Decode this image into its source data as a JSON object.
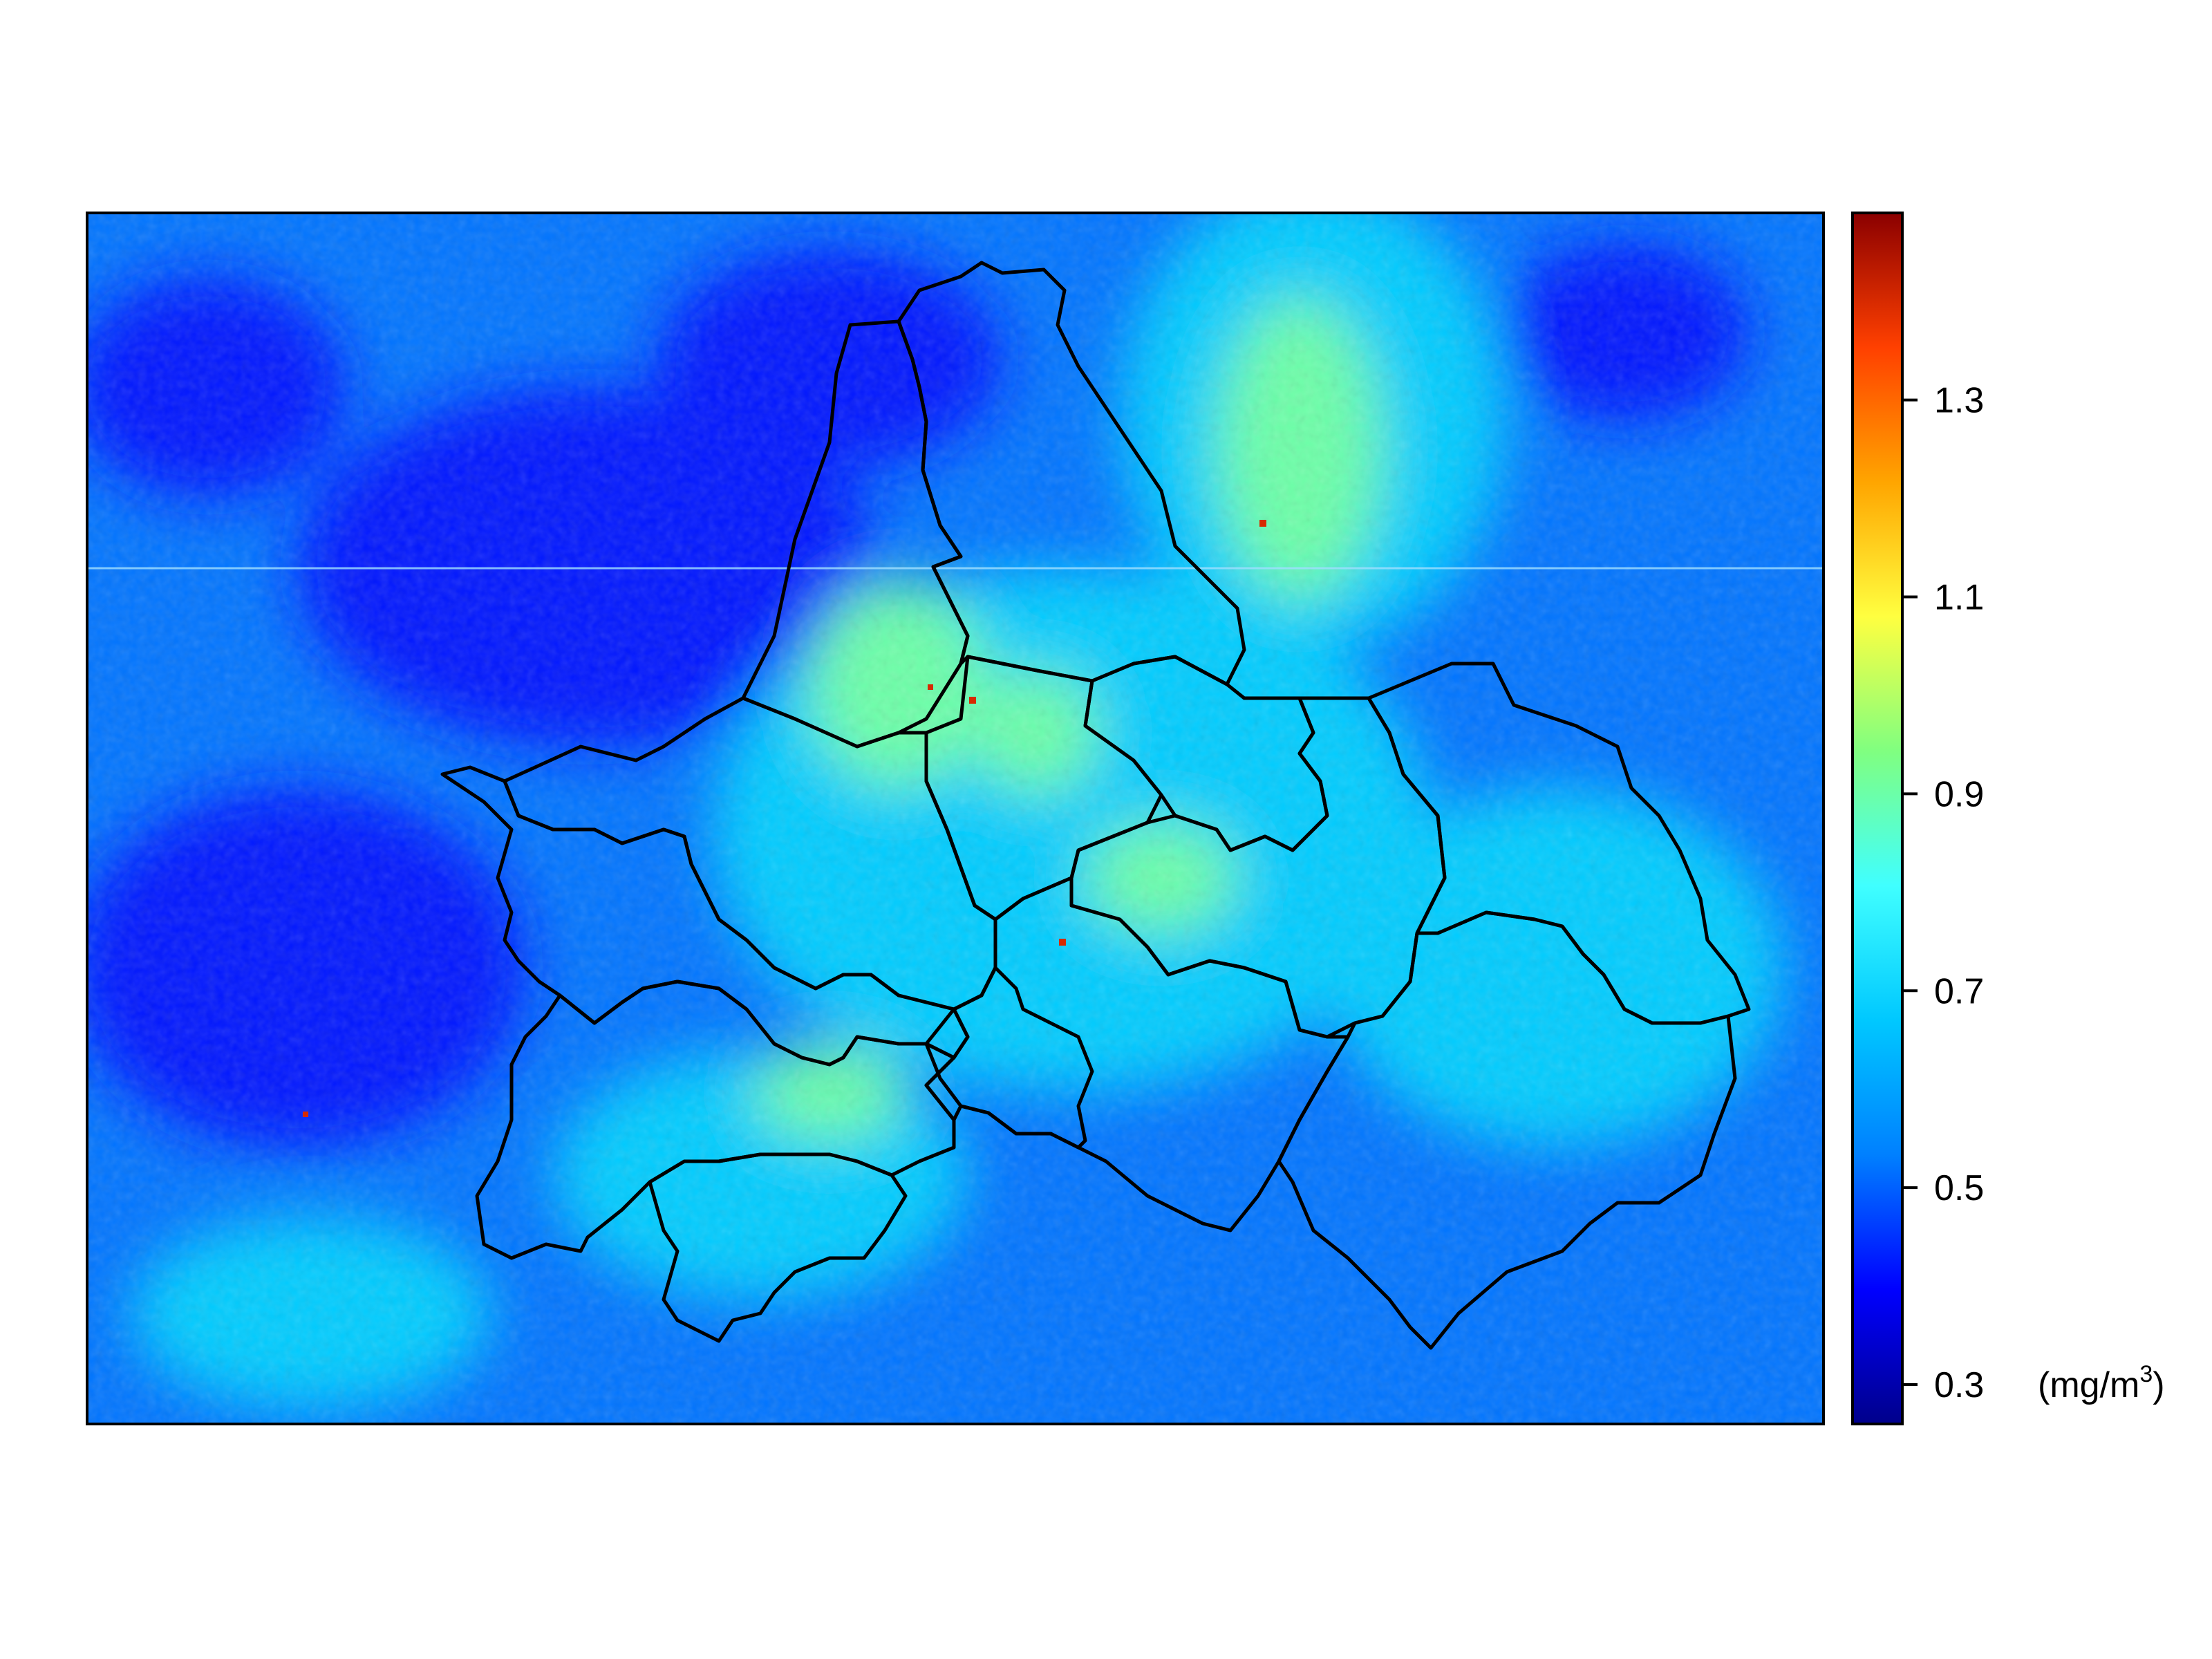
{
  "colorbar": {
    "ticks": [
      {
        "value": 1.3,
        "label": "1.3"
      },
      {
        "value": 1.1,
        "label": "1.1"
      },
      {
        "value": 0.9,
        "label": "0.9"
      },
      {
        "value": 0.7,
        "label": "0.7"
      },
      {
        "value": 0.5,
        "label": "0.5"
      },
      {
        "value": 0.3,
        "label": "0.3"
      }
    ],
    "unit_prefix": "(mg/m",
    "unit_superscript": "3",
    "unit_suffix": ")",
    "range": [
      0.26,
      1.49
    ],
    "colors": [
      "#00008B",
      "#0000FF",
      "#0080FF",
      "#00C8FF",
      "#40FFFF",
      "#80FF80",
      "#FFFF40",
      "#FFA500",
      "#FF4000",
      "#8B0000"
    ]
  },
  "map": {
    "background_levels": {
      "low": 0.42,
      "mid": 0.6,
      "high": 0.8
    },
    "hotspot_value": 1.4
  }
}
